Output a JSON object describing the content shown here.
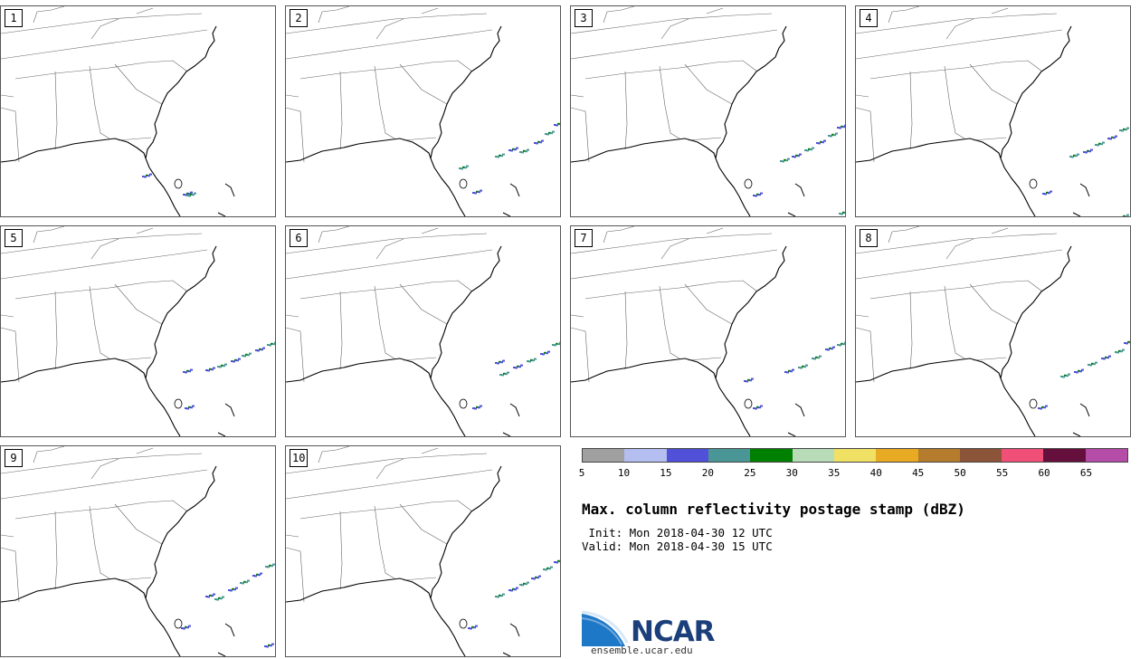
{
  "panels": [
    {
      "label": "1",
      "storms": [
        [
          205,
          207,
          0
        ],
        [
          209,
          208,
          1
        ],
        [
          160,
          187,
          2
        ]
      ]
    },
    {
      "label": "2",
      "storms": [
        [
          235,
          165,
          1
        ],
        [
          250,
          158,
          0
        ],
        [
          262,
          160,
          1
        ],
        [
          278,
          150,
          0
        ],
        [
          290,
          140,
          1
        ],
        [
          300,
          130,
          0
        ],
        [
          195,
          178,
          1
        ],
        [
          210,
          205,
          0
        ]
      ]
    },
    {
      "label": "3",
      "storms": [
        [
          235,
          170,
          1
        ],
        [
          248,
          165,
          0
        ],
        [
          262,
          158,
          1
        ],
        [
          275,
          150,
          0
        ],
        [
          288,
          142,
          1
        ],
        [
          298,
          133,
          0
        ],
        [
          205,
          208,
          0
        ],
        [
          300,
          228,
          1
        ]
      ]
    },
    {
      "label": "4",
      "storms": [
        [
          240,
          165,
          1
        ],
        [
          255,
          160,
          0
        ],
        [
          268,
          152,
          1
        ],
        [
          282,
          145,
          0
        ],
        [
          295,
          136,
          1
        ],
        [
          210,
          206,
          0
        ],
        [
          295,
          232,
          1
        ]
      ]
    },
    {
      "label": "5",
      "storms": [
        [
          230,
          158,
          0
        ],
        [
          243,
          154,
          1
        ],
        [
          258,
          148,
          0
        ],
        [
          270,
          142,
          1
        ],
        [
          285,
          136,
          0
        ],
        [
          298,
          130,
          1
        ],
        [
          205,
          160,
          0
        ],
        [
          207,
          200,
          0
        ]
      ]
    },
    {
      "label": "6",
      "storms": [
        [
          240,
          163,
          1
        ],
        [
          255,
          155,
          0
        ],
        [
          270,
          148,
          1
        ],
        [
          285,
          140,
          0
        ],
        [
          298,
          130,
          1
        ],
        [
          235,
          150,
          0
        ],
        [
          210,
          200,
          0
        ]
      ]
    },
    {
      "label": "7",
      "storms": [
        [
          240,
          160,
          0
        ],
        [
          255,
          155,
          1
        ],
        [
          270,
          145,
          1
        ],
        [
          285,
          135,
          0
        ],
        [
          298,
          130,
          1
        ],
        [
          195,
          170,
          0
        ],
        [
          205,
          200,
          0
        ]
      ]
    },
    {
      "label": "8",
      "storms": [
        [
          230,
          165,
          1
        ],
        [
          245,
          160,
          0
        ],
        [
          260,
          152,
          1
        ],
        [
          275,
          145,
          0
        ],
        [
          290,
          138,
          1
        ],
        [
          300,
          128,
          0
        ],
        [
          205,
          200,
          0
        ]
      ]
    },
    {
      "label": "9",
      "storms": [
        [
          230,
          165,
          0
        ],
        [
          240,
          168,
          1
        ],
        [
          255,
          158,
          0
        ],
        [
          268,
          150,
          1
        ],
        [
          282,
          142,
          0
        ],
        [
          296,
          132,
          1
        ],
        [
          203,
          200,
          0
        ],
        [
          295,
          220,
          0
        ]
      ]
    },
    {
      "label": "10",
      "storms": [
        [
          235,
          165,
          1
        ],
        [
          250,
          158,
          0
        ],
        [
          262,
          152,
          1
        ],
        [
          275,
          145,
          0
        ],
        [
          288,
          135,
          1
        ],
        [
          300,
          127,
          0
        ],
        [
          205,
          200,
          0
        ]
      ]
    }
  ],
  "legend": {
    "colors": [
      "#a0a0a0",
      "#b4bef0",
      "#5050d8",
      "#4a9696",
      "#008000",
      "#b8dcb8",
      "#f0e064",
      "#e8aa22",
      "#b47c2c",
      "#8c5438",
      "#f05078",
      "#640f3c",
      "#b44ca8"
    ],
    "ticks": [
      "5",
      "10",
      "15",
      "20",
      "25",
      "30",
      "35",
      "40",
      "45",
      "50",
      "55",
      "60",
      "65"
    ]
  },
  "title": "Max. column reflectivity postage stamp (dBZ)",
  "init": " Init: Mon 2018-04-30 12 UTC",
  "valid": "Valid: Mon 2018-04-30 15 UTC",
  "logo": {
    "text": "NCAR",
    "url": "ensemble.ucar.edu",
    "brand_color": "#1a3f7a",
    "swoosh_color": "#1e78c8"
  }
}
